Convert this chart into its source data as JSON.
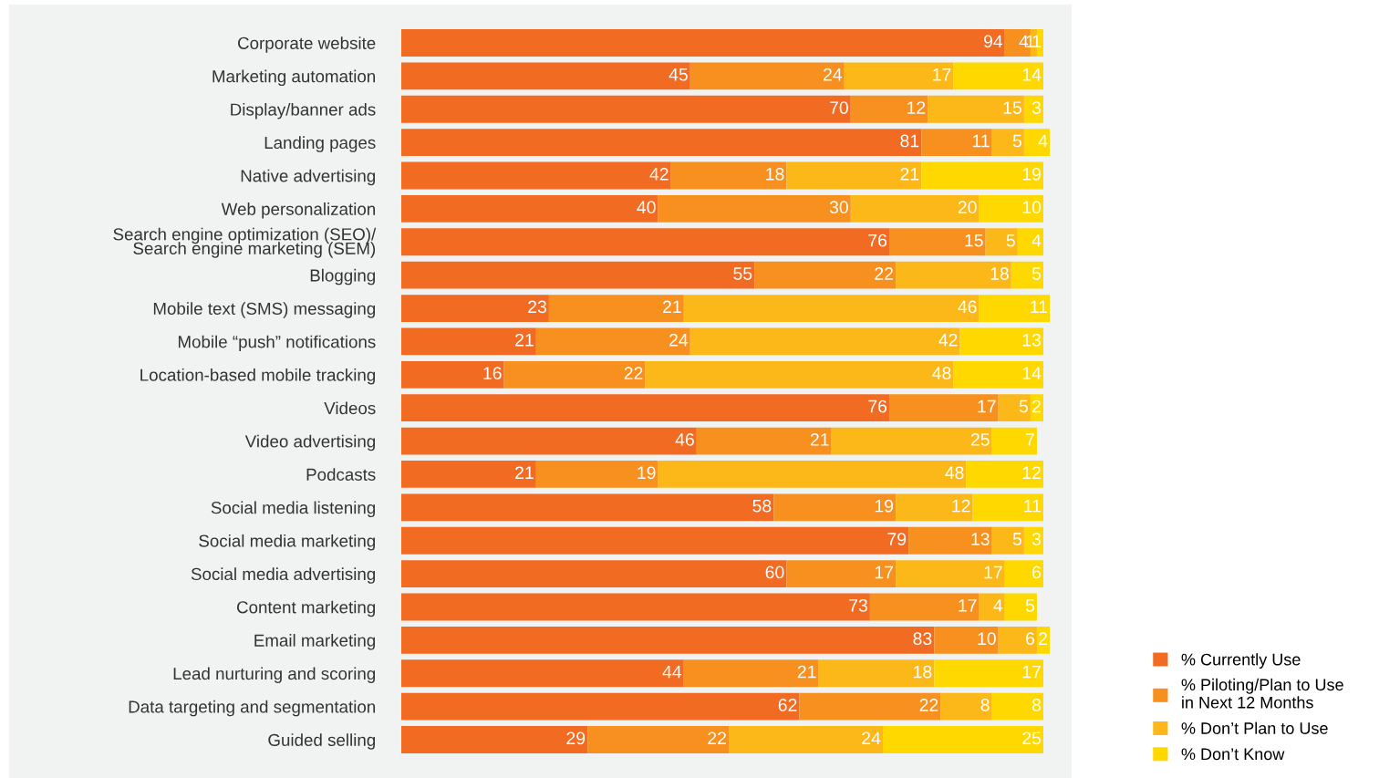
{
  "chart_data": {
    "type": "bar",
    "orientation": "horizontal",
    "stacked": true,
    "data_labels": true,
    "legend": "bottom right",
    "grid": false,
    "categories": [
      "Corporate website",
      "Marketing automation",
      "Display/banner ads",
      "Landing pages",
      "Native advertising",
      "Web personalization",
      "Search engine optimization (SEO)/\nSearch engine marketing (SEM)",
      "Blogging",
      "Mobile text (SMS) messaging",
      "Mobile “push” notifications",
      "Location-based mobile tracking",
      "Videos",
      "Video advertising",
      "Podcasts",
      "Social media listening",
      "Social media marketing",
      "Social media advertising",
      "Content marketing",
      "Email marketing",
      "Lead nurturing and scoring",
      "Data targeting and segmentation",
      "Guided selling"
    ],
    "series": [
      {
        "name": "% Currently Use",
        "color": "#f26b23",
        "values": [
          94,
          45,
          70,
          81,
          42,
          40,
          76,
          55,
          23,
          21,
          16,
          76,
          46,
          21,
          58,
          79,
          60,
          73,
          83,
          44,
          62,
          29
        ]
      },
      {
        "name": "% Piloting/Plan to Use\nin Next 12 Months",
        "color": "#f7901e",
        "values": [
          4,
          24,
          12,
          11,
          18,
          30,
          15,
          22,
          21,
          24,
          22,
          17,
          21,
          19,
          19,
          13,
          17,
          17,
          10,
          21,
          22,
          22
        ]
      },
      {
        "name": "% Don’t Plan to Use",
        "color": "#fbb818",
        "values": [
          1,
          17,
          15,
          5,
          21,
          20,
          5,
          18,
          46,
          42,
          48,
          5,
          25,
          48,
          12,
          5,
          17,
          4,
          6,
          18,
          8,
          24
        ]
      },
      {
        "name": "% Don’t Know",
        "color": "#ffd800",
        "values": [
          1,
          14,
          3,
          4,
          19,
          10,
          4,
          5,
          11,
          13,
          14,
          2,
          7,
          12,
          11,
          3,
          6,
          5,
          2,
          17,
          8,
          25
        ]
      }
    ]
  }
}
